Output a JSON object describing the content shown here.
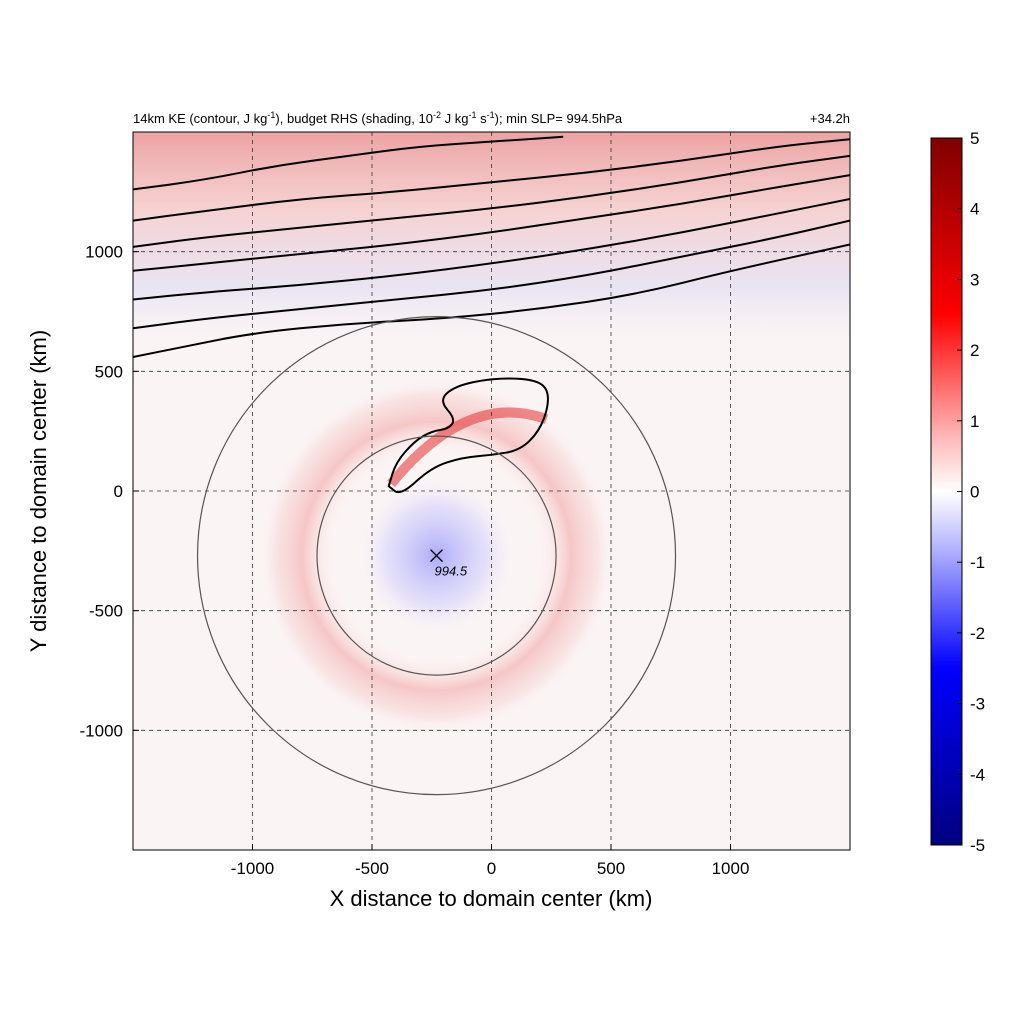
{
  "chart_data": {
    "type": "heatmap",
    "title_left": "14km KE (contour, J kg",
    "title_sup1": "-1",
    "title_mid": "), budget RHS (shading, 10",
    "title_sup2": "-2",
    "title_mid2": " J kg",
    "title_sup3": "-1",
    "title_mid3": " s",
    "title_sup4": "-1",
    "title_end": "); min SLP= 994.5hPa",
    "title_right": "+34.2h",
    "xlabel": "X distance to domain center (km)",
    "ylabel": "Y distance to domain center (km)",
    "xlim": [
      -1500,
      1500
    ],
    "ylim": [
      -1500,
      1500
    ],
    "x_ticks": [
      -1000,
      -500,
      0,
      500,
      1000
    ],
    "y_ticks": [
      -1000,
      -500,
      0,
      500,
      1000
    ],
    "x_tick_labels": [
      "-1000",
      "-500",
      "0",
      "500",
      "1000"
    ],
    "y_tick_labels": [
      "-1000",
      "-500",
      "0",
      "500",
      "1000"
    ],
    "grid": true,
    "colorbar": {
      "min": -5,
      "max": 5,
      "ticks": [
        5,
        4,
        3,
        2,
        1,
        0,
        -1,
        -2,
        -3,
        -4,
        -5
      ],
      "labels": [
        "5",
        "4",
        "3",
        "2",
        "1",
        "0",
        "-1",
        "-2",
        "-3",
        "-4",
        "-5"
      ],
      "colors": [
        "#000080",
        "#0000ff",
        "#ffffff",
        "#ff0000",
        "#800000"
      ],
      "placement": "right"
    },
    "center_marker": {
      "x": -230,
      "y": -270,
      "label": "994.5"
    },
    "range_circles": [
      {
        "cx": -230,
        "cy": -270,
        "r_km": 500
      },
      {
        "cx": -230,
        "cy": -270,
        "r_km": 1000
      }
    ],
    "ke_contours_band": [
      [
        [
          -1500,
          560
        ],
        [
          -1300,
          600
        ],
        [
          -1000,
          660
        ],
        [
          -600,
          700
        ],
        [
          -200,
          720
        ],
        [
          200,
          760
        ],
        [
          600,
          820
        ],
        [
          1000,
          920
        ],
        [
          1500,
          1030
        ]
      ],
      [
        [
          -1500,
          680
        ],
        [
          -1200,
          720
        ],
        [
          -800,
          760
        ],
        [
          -400,
          800
        ],
        [
          0,
          840
        ],
        [
          400,
          900
        ],
        [
          800,
          980
        ],
        [
          1200,
          1060
        ],
        [
          1500,
          1130
        ]
      ],
      [
        [
          -1500,
          800
        ],
        [
          -1200,
          830
        ],
        [
          -800,
          860
        ],
        [
          -400,
          900
        ],
        [
          0,
          950
        ],
        [
          400,
          1010
        ],
        [
          800,
          1080
        ],
        [
          1200,
          1160
        ],
        [
          1500,
          1220
        ]
      ],
      [
        [
          -1500,
          920
        ],
        [
          -1200,
          950
        ],
        [
          -800,
          990
        ],
        [
          -400,
          1030
        ],
        [
          0,
          1080
        ],
        [
          400,
          1140
        ],
        [
          800,
          1200
        ],
        [
          1200,
          1270
        ],
        [
          1500,
          1320
        ]
      ],
      [
        [
          -1500,
          1020
        ],
        [
          -1200,
          1060
        ],
        [
          -800,
          1100
        ],
        [
          -400,
          1140
        ],
        [
          0,
          1180
        ],
        [
          400,
          1230
        ],
        [
          800,
          1290
        ],
        [
          1200,
          1360
        ],
        [
          1500,
          1400
        ]
      ],
      [
        [
          -1500,
          1130
        ],
        [
          -1200,
          1170
        ],
        [
          -800,
          1220
        ],
        [
          -400,
          1250
        ],
        [
          0,
          1290
        ],
        [
          400,
          1330
        ],
        [
          800,
          1380
        ],
        [
          1200,
          1440
        ],
        [
          1500,
          1470
        ]
      ],
      [
        [
          -1500,
          1260
        ],
        [
          -1200,
          1300
        ],
        [
          -900,
          1360
        ],
        [
          -600,
          1400
        ],
        [
          -300,
          1440
        ],
        [
          0,
          1460
        ],
        [
          300,
          1480
        ]
      ]
    ],
    "ke_contours_storm": [
      [
        [
          -430,
          20
        ],
        [
          -400,
          120
        ],
        [
          -320,
          210
        ],
        [
          -250,
          250
        ],
        [
          -180,
          260
        ],
        [
          -150,
          300
        ],
        [
          -220,
          380
        ],
        [
          -150,
          440
        ],
        [
          0,
          470
        ],
        [
          150,
          470
        ],
        [
          230,
          440
        ],
        [
          240,
          360
        ],
        [
          200,
          250
        ],
        [
          120,
          170
        ],
        [
          0,
          150
        ],
        [
          -120,
          140
        ],
        [
          -250,
          100
        ],
        [
          -380,
          -20
        ],
        [
          -430,
          20
        ]
      ]
    ]
  }
}
